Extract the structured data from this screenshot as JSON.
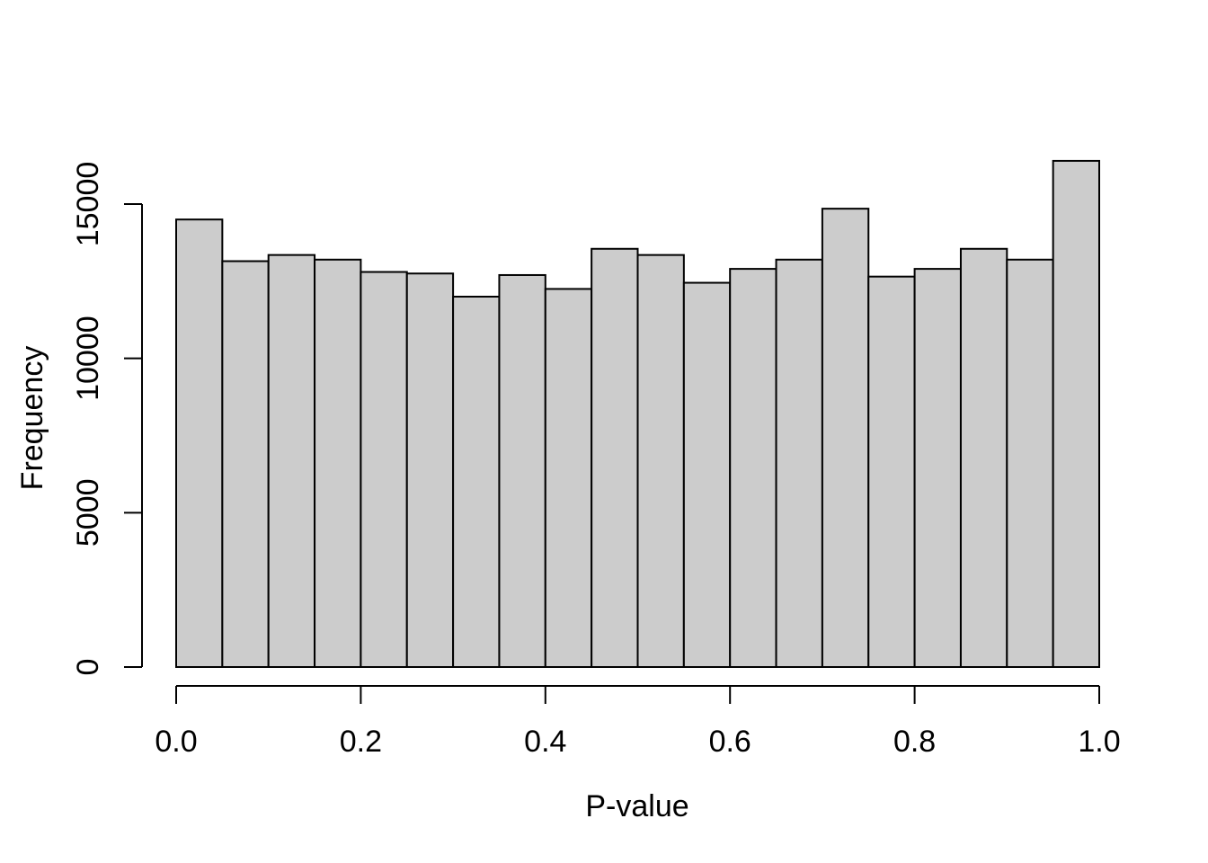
{
  "figure": {
    "background": "#ffffff",
    "description": "Base-R style histogram of p-values"
  },
  "chart_data": {
    "type": "bar",
    "subtype": "histogram",
    "title": "",
    "xlabel": "P-value",
    "ylabel": "Frequency",
    "bin_edges": [
      0,
      0.05,
      0.1,
      0.15,
      0.2,
      0.25,
      0.3,
      0.35,
      0.4,
      0.45,
      0.5,
      0.55,
      0.6,
      0.65,
      0.7,
      0.75,
      0.8,
      0.85,
      0.9,
      0.95,
      1.0
    ],
    "frequencies": [
      14500,
      13150,
      13350,
      13200,
      12800,
      12750,
      12000,
      12700,
      12250,
      13550,
      13350,
      12450,
      12900,
      13200,
      14850,
      12650,
      12900,
      13550,
      13200,
      16400
    ],
    "xlim": [
      0,
      1
    ],
    "ylim": [
      0,
      16400
    ],
    "x_ticks": [
      0,
      0.2,
      0.4,
      0.6,
      0.8,
      1.0
    ],
    "x_tick_labels": [
      "0.0",
      "0.2",
      "0.4",
      "0.6",
      "0.8",
      "1.0"
    ],
    "y_ticks": [
      0,
      5000,
      10000,
      15000
    ],
    "y_tick_labels": [
      "0",
      "5000",
      "10000",
      "15000"
    ],
    "grid": false,
    "legend_position": "none",
    "bar_fill": "#cccccc",
    "bar_stroke": "#000000",
    "axis_color": "#000000",
    "text_color": "#000000"
  }
}
